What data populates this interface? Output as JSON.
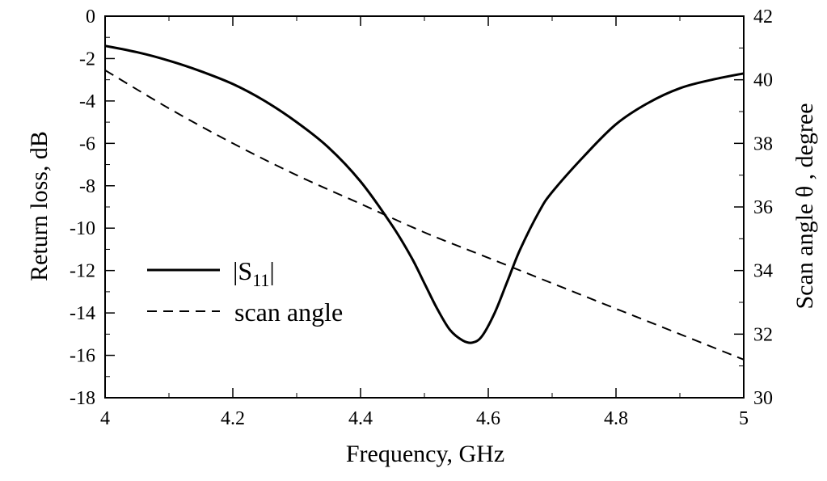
{
  "chart_data": {
    "type": "line",
    "title": "",
    "xlabel": "Frequency, GHz",
    "ylabel": "Return loss, dB",
    "y2label": "Scan angle  θ , degree",
    "xlim": [
      4,
      5
    ],
    "ylim": [
      -18,
      0
    ],
    "y2lim": [
      30,
      42
    ],
    "x_ticks": [
      "4",
      "4.2",
      "4.4",
      "4.6",
      "4.8",
      "5"
    ],
    "y_ticks": [
      "0",
      "-2",
      "-4",
      "-6",
      "-8",
      "-10",
      "-12",
      "-14",
      "-16",
      "-18"
    ],
    "y2_ticks": [
      "42",
      "40",
      "38",
      "36",
      "34",
      "32",
      "30"
    ],
    "grid": false,
    "legend_position": "center-left",
    "series": [
      {
        "name": "|S11|",
        "axis": "left",
        "style": "solid",
        "x": [
          4.0,
          4.05,
          4.1,
          4.15,
          4.2,
          4.25,
          4.3,
          4.35,
          4.4,
          4.45,
          4.48,
          4.5,
          4.52,
          4.54,
          4.56,
          4.575,
          4.59,
          4.61,
          4.63,
          4.65,
          4.68,
          4.7,
          4.75,
          4.8,
          4.85,
          4.9,
          4.95,
          5.0
        ],
        "y": [
          -1.4,
          -1.7,
          -2.1,
          -2.6,
          -3.2,
          -4.0,
          -5.0,
          -6.2,
          -7.8,
          -9.9,
          -11.4,
          -12.6,
          -13.8,
          -14.8,
          -15.3,
          -15.4,
          -15.1,
          -14.0,
          -12.5,
          -11.0,
          -9.2,
          -8.3,
          -6.6,
          -5.1,
          -4.1,
          -3.4,
          -3.0,
          -2.7
        ]
      },
      {
        "name": "scan angle",
        "axis": "right",
        "style": "dashed",
        "x": [
          4.0,
          4.1,
          4.2,
          4.3,
          4.4,
          4.5,
          4.6,
          4.7,
          4.8,
          4.9,
          5.0
        ],
        "y": [
          40.3,
          39.1,
          38.0,
          37.0,
          36.1,
          35.2,
          34.4,
          33.6,
          32.8,
          32.0,
          31.2
        ]
      }
    ],
    "legend": {
      "s11_main": "|S",
      "s11_sub": "11",
      "s11_close": "|",
      "scan_angle": "scan angle"
    }
  }
}
